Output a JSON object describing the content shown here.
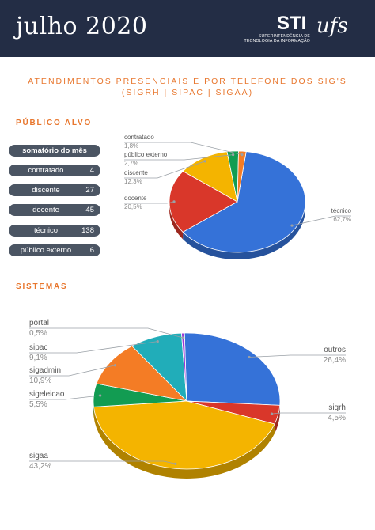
{
  "header": {
    "month": "julho 2020",
    "logo_sti": "STI",
    "logo_ufs": "ufs",
    "logo_sub_line1": "SUPERINTENDÊNCIA DE",
    "logo_sub_line2": "TECNOLOGIA DA INFORMAÇÃO"
  },
  "title_line1": "ATENDIMENTOS PRESENCIAIS E POR TELEFONE DOS SIG'S",
  "title_line2": "(SIGRH | SIPAC | SIGAA)",
  "section1": "PÚBLICO ALVO",
  "section2": "SISTEMAS",
  "summary": {
    "header": "somatório do mês",
    "rows": [
      {
        "label": "contratado",
        "value": "4"
      },
      {
        "label": "discente",
        "value": "27"
      },
      {
        "label": "docente",
        "value": "45"
      },
      {
        "label": "técnico",
        "value": "138"
      },
      {
        "label": "público externo",
        "value": "6"
      }
    ]
  },
  "chart_data": [
    {
      "type": "pie",
      "title": "",
      "slices": [
        {
          "label": "técnico",
          "value": 62.7,
          "display": "62,7%",
          "color": "#3572d8"
        },
        {
          "label": "docente",
          "value": 20.5,
          "display": "20,5%",
          "color": "#d9372a"
        },
        {
          "label": "discente",
          "value": 12.3,
          "display": "12,3%",
          "color": "#f4b400"
        },
        {
          "label": "público externo",
          "value": 2.7,
          "display": "2,7%",
          "color": "#129c52"
        },
        {
          "label": "contratado",
          "value": 1.8,
          "display": "1,8%",
          "color": "#f47c25"
        }
      ]
    },
    {
      "type": "pie",
      "title": "",
      "slices": [
        {
          "label": "outros",
          "value": 26.4,
          "display": "26,4%",
          "color": "#3572d8"
        },
        {
          "label": "sigrh",
          "value": 4.5,
          "display": "4,5%",
          "color": "#d9372a"
        },
        {
          "label": "sigaa",
          "value": 43.2,
          "display": "43,2%",
          "color": "#f4b400"
        },
        {
          "label": "sigeleicao",
          "value": 5.5,
          "display": "5,5%",
          "color": "#129c52"
        },
        {
          "label": "sigadmin",
          "value": 10.9,
          "display": "10,9%",
          "color": "#f47c25"
        },
        {
          "label": "sipac",
          "value": 9.1,
          "display": "9,1%",
          "color": "#21adb9"
        },
        {
          "label": "portal",
          "value": 0.5,
          "display": "0,5%",
          "color": "#9c37d6"
        }
      ]
    }
  ]
}
